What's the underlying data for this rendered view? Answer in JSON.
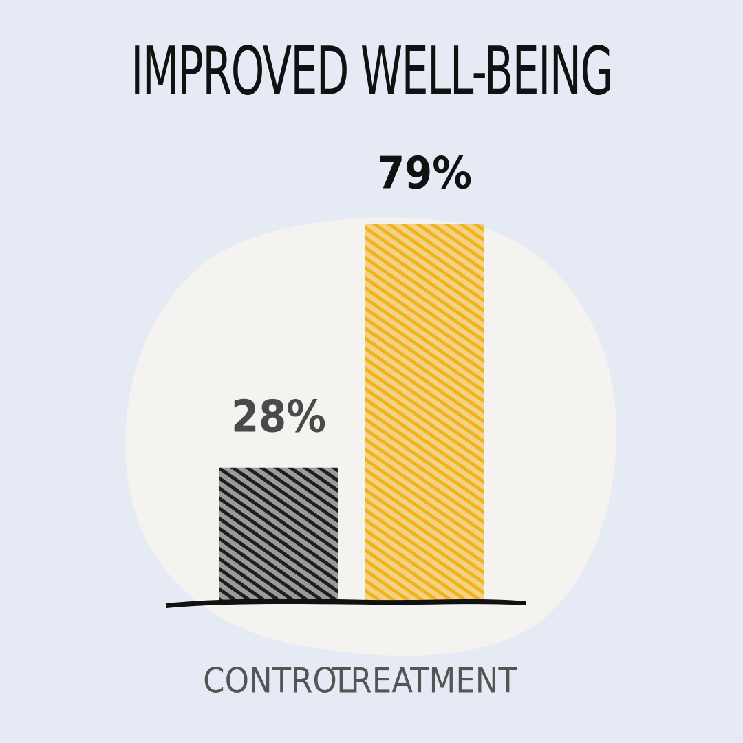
{
  "chart_data": {
    "type": "bar",
    "title": "IMPROVED WELL-BEING",
    "categories": [
      "CONTROL",
      "TREATMENT"
    ],
    "values": [
      28,
      79
    ],
    "value_labels": [
      "28%",
      "79%"
    ],
    "colors": [
      "#1e1e1e",
      "#f2b21c"
    ]
  }
}
